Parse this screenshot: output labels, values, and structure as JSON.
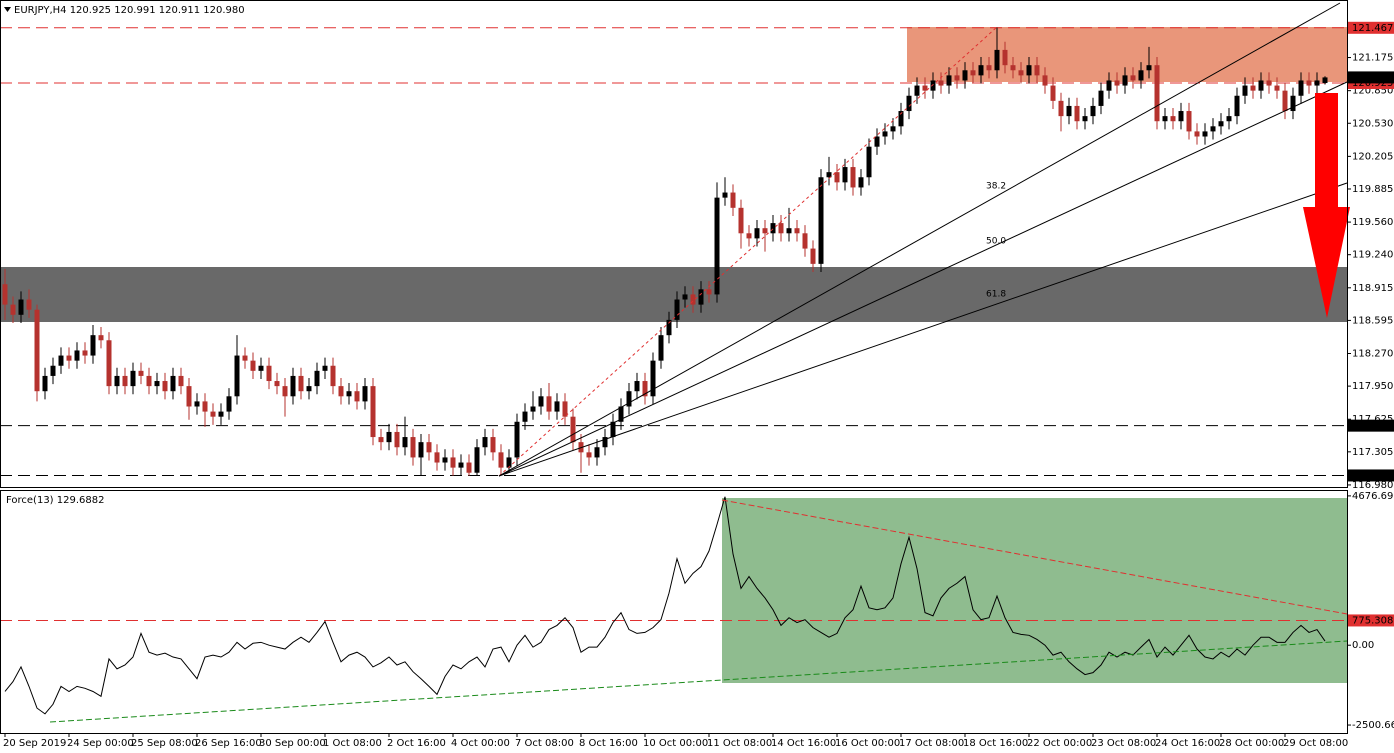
{
  "chart_data": [
    {
      "type": "candlestick",
      "title": "EURJPY,H4  120.925 120.991 120.911 120.980",
      "ylim": [
        116.95,
        121.73
      ],
      "yticks": [
        {
          "value": 116.98,
          "label": "116.980"
        },
        117.305,
        117.625,
        {
          "value": 117.95,
          "label": "117.950"
        },
        {
          "value": 118.27,
          "label": "118.270"
        },
        118.595,
        118.915,
        {
          "value": 119.24,
          "label": "119.240"
        },
        {
          "value": 119.56,
          "label": "119.560"
        },
        119.885,
        120.205,
        {
          "value": 120.53,
          "label": "120.530"
        },
        {
          "value": 120.85,
          "label": "120.850"
        },
        121.175
      ],
      "levels": [
        {
          "value": 121.467,
          "color": "#e03030"
        },
        {
          "value": 120.925,
          "color": "#e03030"
        },
        {
          "value": 117.562,
          "color": "#000000"
        },
        {
          "value": 117.073,
          "color": "#000000"
        }
      ],
      "last_price": {
        "value": 120.98,
        "label": "120.980"
      },
      "annotations": [
        "38.2",
        "50.0",
        "61.8"
      ],
      "up_color": "#000000",
      "down_color": "#b5322e",
      "categories": [
        "20 Sep 2019",
        null,
        null,
        null,
        null,
        null,
        null,
        null,
        "24 Sep 00:00",
        null,
        null,
        null,
        null,
        null,
        null,
        null,
        "25 Sep 08:00",
        null,
        null,
        null,
        null,
        null,
        null,
        null,
        "26 Sep 16:00",
        null,
        null,
        null,
        null,
        null,
        null,
        null,
        "30 Sep 00:00",
        null,
        null,
        null,
        null,
        null,
        null,
        null,
        "1 Oct 08:00",
        null,
        null,
        null,
        null,
        null,
        null,
        null,
        "2 Oct 16:00",
        null,
        null,
        null,
        null,
        null,
        null,
        null,
        "4 Oct 00:00",
        null,
        null,
        null,
        null,
        null,
        null,
        null,
        "7 Oct 08:00",
        null,
        null,
        null,
        null,
        null,
        null,
        null,
        "8 Oct 16:00",
        null,
        null,
        null,
        null,
        null,
        null,
        null,
        "10 Oct 00:00",
        null,
        null,
        null,
        null,
        null,
        null,
        null,
        "11 Oct 08:00",
        null,
        null,
        null,
        null,
        null,
        null,
        null,
        "14 Oct 16:00",
        null,
        null,
        null,
        null,
        null,
        null,
        null,
        "16 Oct 00:00",
        null,
        null,
        null,
        null,
        null,
        null,
        null,
        "17 Oct 08:00",
        null,
        null,
        null,
        null,
        null,
        null,
        null,
        "18 Oct 16:00",
        null,
        null,
        null,
        null,
        null,
        null,
        null,
        "22 Oct 00:00",
        null,
        null,
        null,
        null,
        null,
        null,
        null,
        "23 Oct 08:00",
        null,
        null,
        null,
        null,
        null,
        null,
        null,
        "24 Oct 16:00",
        null,
        null,
        null,
        null,
        null,
        null,
        null,
        "28 Oct 00:00",
        null,
        null,
        null,
        null,
        null,
        null,
        null,
        "29 Oct 08:00",
        null,
        null,
        null,
        null,
        null
      ],
      "open": [
        118.95,
        118.75,
        118.65,
        118.8,
        118.7,
        117.9,
        118.05,
        118.15,
        118.25,
        118.2,
        118.3,
        118.25,
        118.45,
        118.4,
        117.95,
        118.05,
        117.95,
        118.1,
        118.05,
        117.95,
        118,
        117.9,
        118.05,
        117.95,
        117.75,
        117.8,
        117.7,
        117.65,
        117.7,
        117.85,
        118.25,
        118.2,
        118.1,
        118.15,
        118,
        117.95,
        117.85,
        118.05,
        117.9,
        117.95,
        118.1,
        118.15,
        117.95,
        117.85,
        117.9,
        117.8,
        117.95,
        117.45,
        117.4,
        117.5,
        117.35,
        117.45,
        117.25,
        117.4,
        117.3,
        117.2,
        117.25,
        117.15,
        117.2,
        117.1,
        117.35,
        117.45,
        117.3,
        117.15,
        117.25,
        117.6,
        117.7,
        117.75,
        117.85,
        117.7,
        117.8,
        117.65,
        117.4,
        117.3,
        117.25,
        117.35,
        117.45,
        117.6,
        117.75,
        117.9,
        118,
        117.85,
        118.2,
        118.45,
        118.6,
        118.8,
        118.85,
        118.75,
        118.9,
        118.85,
        119.8,
        119.85,
        119.7,
        119.45,
        119.4,
        119.5,
        119.45,
        119.55,
        119.45,
        119.5,
        119.45,
        119.3,
        119.15,
        120,
        120.05,
        119.95,
        120.1,
        119.9,
        120,
        120.3,
        120.4,
        120.45,
        120.5,
        120.65,
        120.8,
        120.9,
        120.85,
        120.95,
        120.9,
        121,
        120.95,
        121.05,
        121,
        121.1,
        121.05,
        121.25,
        121.1,
        121.05,
        121,
        121.1,
        121,
        120.9,
        120.75,
        120.6,
        120.7,
        120.55,
        120.6,
        120.7,
        120.85,
        120.95,
        120.9,
        121,
        120.95,
        121.05,
        121.1,
        120.55,
        120.6,
        120.55,
        120.65,
        120.45,
        120.4,
        120.45,
        120.5,
        120.55,
        120.6,
        120.8,
        120.9,
        120.85,
        120.95,
        120.9,
        120.85,
        120.65,
        120.8,
        120.95,
        120.9,
        120.925
      ],
      "high": [
        119.1,
        118.83,
        118.88,
        118.9,
        118.75,
        118.13,
        118.23,
        118.33,
        118.33,
        118.38,
        118.38,
        118.55,
        118.53,
        118.48,
        118.13,
        118.13,
        118.18,
        118.18,
        118.13,
        118.08,
        118.08,
        118.13,
        118.13,
        118.03,
        117.88,
        117.88,
        117.78,
        117.78,
        117.93,
        118.45,
        118.33,
        118.28,
        118.23,
        118.23,
        118.08,
        118.03,
        118.13,
        118.13,
        118.03,
        118.18,
        118.23,
        118.23,
        118.03,
        117.98,
        117.98,
        118.03,
        118.03,
        117.53,
        117.58,
        117.58,
        117.65,
        117.53,
        117.48,
        117.48,
        117.38,
        117.33,
        117.33,
        117.28,
        117.28,
        117.43,
        117.53,
        117.53,
        117.38,
        117.33,
        117.68,
        117.78,
        117.9,
        117.93,
        117.98,
        117.88,
        117.88,
        117.73,
        117.48,
        117.38,
        117.43,
        117.53,
        117.68,
        117.83,
        117.98,
        118.08,
        118.08,
        118.28,
        118.53,
        118.68,
        118.88,
        118.93,
        118.93,
        118.98,
        118.98,
        119.95,
        120,
        119.93,
        119.78,
        119.53,
        119.58,
        119.58,
        119.63,
        119.63,
        119.7,
        119.58,
        119.53,
        119.38,
        120.08,
        120.2,
        120.13,
        120.18,
        120.18,
        120.08,
        120.38,
        120.48,
        120.53,
        120.58,
        120.73,
        120.88,
        120.98,
        120.98,
        121.03,
        121.03,
        121.08,
        121.08,
        121.13,
        121.13,
        121.18,
        121.18,
        121.47,
        121.33,
        121.18,
        121.13,
        121.18,
        121.18,
        121.08,
        120.98,
        120.83,
        120.78,
        120.78,
        120.68,
        120.78,
        120.93,
        121.03,
        121.03,
        121.08,
        121.08,
        121.13,
        121.28,
        121.18,
        120.68,
        120.68,
        120.73,
        120.73,
        120.53,
        120.53,
        120.58,
        120.63,
        120.68,
        120.88,
        120.98,
        120.98,
        121.03,
        121.03,
        120.98,
        120.93,
        120.88,
        121.03,
        121.03,
        121.03,
        120.991
      ],
      "low": [
        118.6,
        118.57,
        118.57,
        118.62,
        117.8,
        117.82,
        117.97,
        118.07,
        118.12,
        118.12,
        118.17,
        118.17,
        118.32,
        117.87,
        117.87,
        117.87,
        117.87,
        117.97,
        117.87,
        117.87,
        117.82,
        117.82,
        117.87,
        117.62,
        117.67,
        117.55,
        117.57,
        117.57,
        117.62,
        117.77,
        118.12,
        118.02,
        118.02,
        117.92,
        117.87,
        117.65,
        117.77,
        117.82,
        117.82,
        117.87,
        118.02,
        117.87,
        117.77,
        117.77,
        117.72,
        117.72,
        117.37,
        117.32,
        117.32,
        117.27,
        117.27,
        117.17,
        117.07,
        117.22,
        117.12,
        117.12,
        117.07,
        117.07,
        117.07,
        117.07,
        117.27,
        117.22,
        117.07,
        117.1,
        117.17,
        117.52,
        117.62,
        117.67,
        117.62,
        117.62,
        117.57,
        117.32,
        117.1,
        117.17,
        117.17,
        117.27,
        117.37,
        117.52,
        117.67,
        117.82,
        117.77,
        117.77,
        118.12,
        118.37,
        118.52,
        118.72,
        118.67,
        118.67,
        118.77,
        118.77,
        119.72,
        119.62,
        119.3,
        119.32,
        119.32,
        119.27,
        119.37,
        119.37,
        119.37,
        119.37,
        119.22,
        119.07,
        119.07,
        119.92,
        119.87,
        119.87,
        119.82,
        119.82,
        119.92,
        120.22,
        120.32,
        120.37,
        120.42,
        120.57,
        120.72,
        120.77,
        120.77,
        120.82,
        120.82,
        120.87,
        120.87,
        120.92,
        120.92,
        120.97,
        120.97,
        121.02,
        120.97,
        120.92,
        120.92,
        120.92,
        120.82,
        120.67,
        120.45,
        120.52,
        120.47,
        120.47,
        120.52,
        120.62,
        120.77,
        120.82,
        120.82,
        120.87,
        120.87,
        120.97,
        120.47,
        120.47,
        120.47,
        120.47,
        120.37,
        120.32,
        120.32,
        120.37,
        120.42,
        120.47,
        120.52,
        120.72,
        120.77,
        120.77,
        120.82,
        120.77,
        120.57,
        120.57,
        120.72,
        120.82,
        120.82,
        120.911
      ],
      "close": [
        118.75,
        118.65,
        118.8,
        118.7,
        117.9,
        118.05,
        118.15,
        118.25,
        118.2,
        118.3,
        118.25,
        118.45,
        118.4,
        117.95,
        118.05,
        117.95,
        118.1,
        118.05,
        117.95,
        118,
        117.9,
        118.05,
        117.95,
        117.75,
        117.8,
        117.7,
        117.65,
        117.7,
        117.85,
        118.25,
        118.2,
        118.1,
        118.15,
        118,
        117.95,
        117.85,
        118.05,
        117.9,
        117.95,
        118.1,
        118.15,
        117.95,
        117.85,
        117.9,
        117.8,
        117.95,
        117.45,
        117.4,
        117.5,
        117.35,
        117.45,
        117.25,
        117.4,
        117.3,
        117.2,
        117.25,
        117.15,
        117.2,
        117.1,
        117.35,
        117.45,
        117.3,
        117.15,
        117.25,
        117.6,
        117.7,
        117.75,
        117.85,
        117.7,
        117.8,
        117.65,
        117.4,
        117.3,
        117.25,
        117.35,
        117.45,
        117.6,
        117.75,
        117.9,
        118,
        117.85,
        118.2,
        118.45,
        118.6,
        118.8,
        118.85,
        118.75,
        118.9,
        118.85,
        119.8,
        119.85,
        119.7,
        119.45,
        119.4,
        119.5,
        119.45,
        119.55,
        119.45,
        119.5,
        119.45,
        119.3,
        119.15,
        120,
        120.05,
        119.95,
        120.1,
        119.9,
        120,
        120.3,
        120.4,
        120.45,
        120.5,
        120.65,
        120.8,
        120.9,
        120.85,
        120.95,
        120.9,
        121,
        120.95,
        121.05,
        121,
        121.1,
        121.05,
        121.25,
        121.1,
        121.05,
        121,
        121.1,
        121,
        120.9,
        120.75,
        120.6,
        120.7,
        120.55,
        120.6,
        120.7,
        120.85,
        120.95,
        120.9,
        121,
        120.95,
        121.05,
        121.1,
        120.55,
        120.6,
        120.55,
        120.65,
        120.45,
        120.4,
        120.45,
        120.5,
        120.55,
        120.6,
        120.8,
        120.9,
        120.85,
        120.95,
        120.9,
        120.85,
        120.65,
        120.8,
        120.95,
        120.9,
        120.95,
        120.98
      ]
    },
    {
      "type": "line",
      "title": "Force(13) 129.6882",
      "color": "#000000",
      "ylim": [
        -2750,
        4830
      ],
      "yticks": [
        4676.6935,
        {
          "value": 0,
          "label": "0.00"
        },
        -2500.664
      ],
      "levels": [
        {
          "value": 775.3082,
          "color": "#e03030"
        }
      ],
      "values": [
        -1450,
        -1140,
        -680,
        -1290,
        -1970,
        -2150,
        -1850,
        -1290,
        -1450,
        -1290,
        -1350,
        -1450,
        -1600,
        -430,
        -740,
        -620,
        -370,
        370,
        -220,
        -310,
        -250,
        -370,
        -430,
        -740,
        -1050,
        -370,
        -310,
        -370,
        -220,
        90,
        -120,
        60,
        90,
        0,
        -60,
        -120,
        90,
        250,
        90,
        400,
        740,
        90,
        -520,
        -310,
        -220,
        -370,
        -680,
        -550,
        -370,
        -620,
        -520,
        -830,
        -1050,
        -1290,
        -1540,
        -980,
        -620,
        -740,
        -520,
        -370,
        -680,
        -120,
        -60,
        -520,
        0,
        310,
        -60,
        90,
        490,
        620,
        860,
        550,
        -220,
        -60,
        -60,
        250,
        710,
        1020,
        490,
        370,
        400,
        550,
        800,
        1630,
        2710,
        1940,
        2250,
        2460,
        2950,
        3780,
        4650,
        2860,
        1780,
        2150,
        1780,
        1480,
        1110,
        620,
        860,
        710,
        800,
        550,
        400,
        250,
        370,
        860,
        1110,
        1850,
        1170,
        1110,
        1170,
        1480,
        2550,
        3380,
        2400,
        1020,
        920,
        1480,
        1780,
        1940,
        2150,
        1110,
        800,
        860,
        1540,
        860,
        400,
        340,
        310,
        180,
        0,
        -310,
        -220,
        -520,
        -740,
        -920,
        -860,
        -620,
        -220,
        -370,
        -220,
        -310,
        -60,
        180,
        -370,
        -60,
        -310,
        0,
        310,
        -120,
        -370,
        -430,
        -220,
        -370,
        -120,
        -310,
        0,
        250,
        250,
        90,
        90,
        400,
        620,
        400,
        490,
        129.6882
      ]
    }
  ]
}
